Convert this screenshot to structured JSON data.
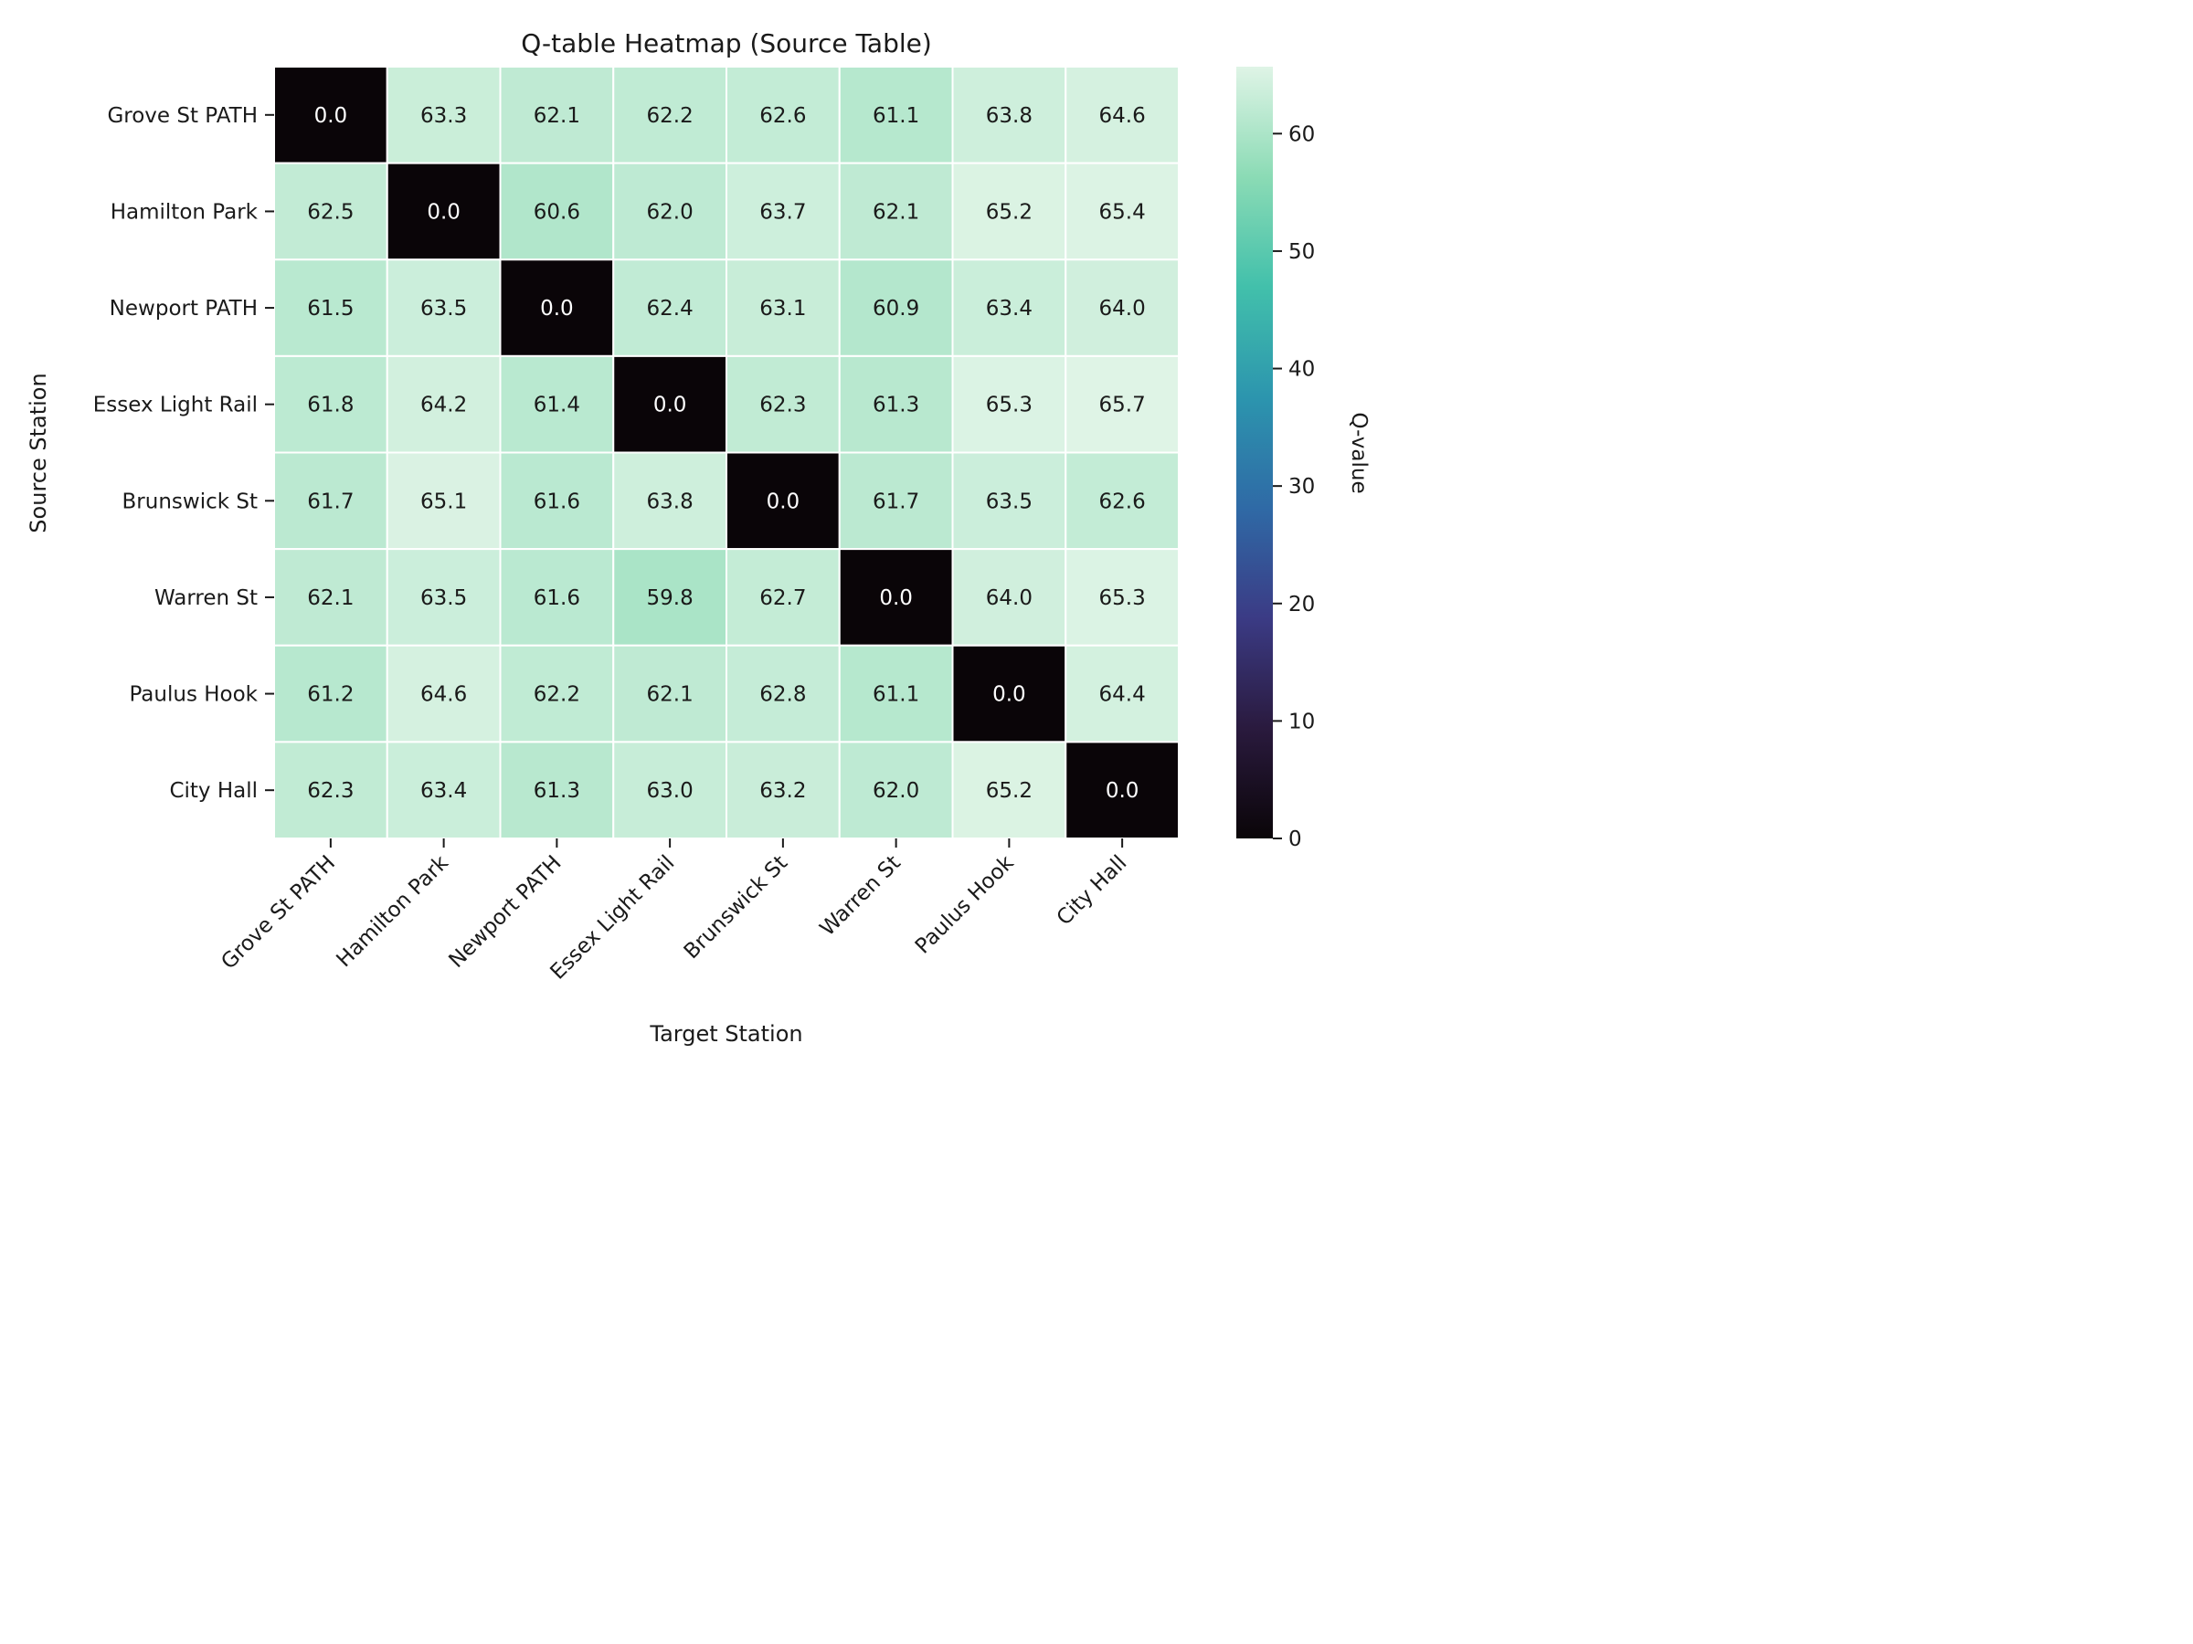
{
  "chart_data": {
    "type": "heatmap",
    "title": "Q-table Heatmap (Source Table)",
    "xlabel": "Target Station",
    "ylabel": "Source Station",
    "x_categories": [
      "Grove St PATH",
      "Hamilton Park",
      "Newport PATH",
      "Essex Light Rail",
      "Brunswick St",
      "Warren St",
      "Paulus Hook",
      "City Hall"
    ],
    "y_categories": [
      "Grove St PATH",
      "Hamilton Park",
      "Newport PATH",
      "Essex Light Rail",
      "Brunswick St",
      "Warren St",
      "Paulus Hook",
      "City Hall"
    ],
    "values": [
      [
        0.0,
        63.3,
        62.1,
        62.2,
        62.6,
        61.1,
        63.8,
        64.6
      ],
      [
        62.5,
        0.0,
        60.6,
        62.0,
        63.7,
        62.1,
        65.2,
        65.4
      ],
      [
        61.5,
        63.5,
        0.0,
        62.4,
        63.1,
        60.9,
        63.4,
        64.0
      ],
      [
        61.8,
        64.2,
        61.4,
        0.0,
        62.3,
        61.3,
        65.3,
        65.7
      ],
      [
        61.7,
        65.1,
        61.6,
        63.8,
        0.0,
        61.7,
        63.5,
        62.6
      ],
      [
        62.1,
        63.5,
        61.6,
        59.8,
        62.7,
        0.0,
        64.0,
        65.3
      ],
      [
        61.2,
        64.6,
        62.2,
        62.1,
        62.8,
        61.1,
        0.0,
        64.4
      ],
      [
        62.3,
        63.4,
        61.3,
        63.0,
        63.2,
        62.0,
        65.2,
        0.0
      ]
    ],
    "colorbar": {
      "label": "Q-value",
      "range": [
        0,
        65.7
      ],
      "ticks": [
        0,
        10,
        20,
        30,
        40,
        50,
        60
      ],
      "colormap": [
        "#0a0508",
        "#2a1a3e",
        "#3b3b85",
        "#2f6aa6",
        "#2c95ae",
        "#42c0ab",
        "#8bdbb5",
        "#dff4e6"
      ]
    },
    "grid": true
  }
}
